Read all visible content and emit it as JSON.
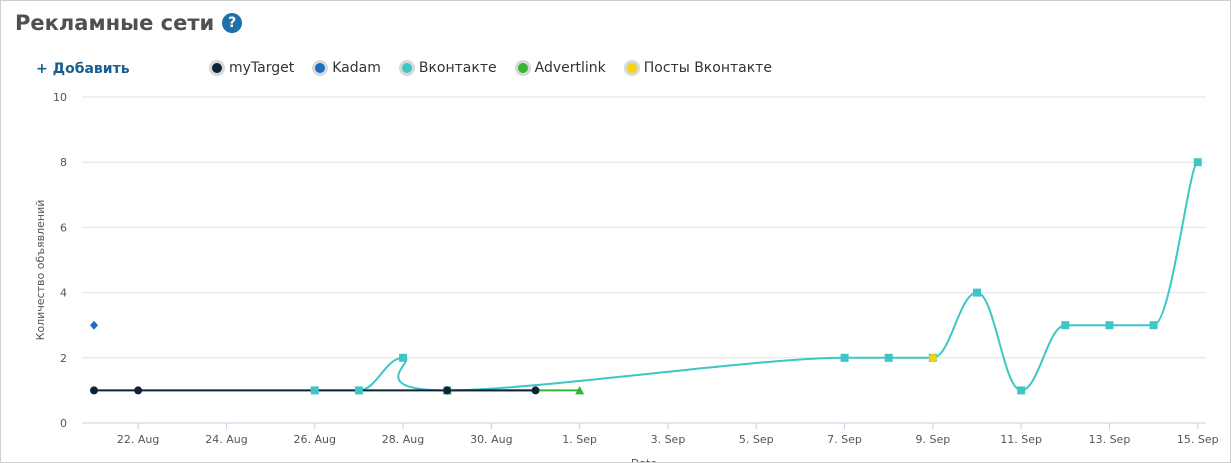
{
  "header": {
    "title": "Рекламные сети",
    "help_glyph": "?",
    "add_label": "+ Добавить"
  },
  "legend": [
    {
      "name": "myTarget",
      "color": "#0d233a"
    },
    {
      "name": "Kadam",
      "color": "#1b6fc2"
    },
    {
      "name": "Вконтакте",
      "color": "#3ec6c6"
    },
    {
      "name": "Advertlink",
      "color": "#35b535"
    },
    {
      "name": "Посты Вконтакте",
      "color": "#f5d40f"
    }
  ],
  "chart_data": {
    "type": "line",
    "ylabel": "Количество объявлений",
    "xlabel": "Date",
    "ylim": [
      0,
      10
    ],
    "yticks": [
      0,
      2,
      4,
      6,
      8,
      10
    ],
    "xlim": [
      "2016-08-21",
      "2016-09-15"
    ],
    "xticks": [
      {
        "date": "2016-08-22",
        "label": "22. Aug"
      },
      {
        "date": "2016-08-24",
        "label": "24. Aug"
      },
      {
        "date": "2016-08-26",
        "label": "26. Aug"
      },
      {
        "date": "2016-08-28",
        "label": "28. Aug"
      },
      {
        "date": "2016-08-30",
        "label": "30. Aug"
      },
      {
        "date": "2016-09-01",
        "label": "1. Sep"
      },
      {
        "date": "2016-09-03",
        "label": "3. Sep"
      },
      {
        "date": "2016-09-05",
        "label": "5. Sep"
      },
      {
        "date": "2016-09-07",
        "label": "7. Sep"
      },
      {
        "date": "2016-09-09",
        "label": "9. Sep"
      },
      {
        "date": "2016-09-11",
        "label": "11. Sep"
      },
      {
        "date": "2016-09-13",
        "label": "13. Sep"
      },
      {
        "date": "2016-09-15",
        "label": "15. Sep"
      }
    ],
    "grid": true,
    "legend_position": "top",
    "series": [
      {
        "name": "Kadam",
        "color": "#1b6fc2",
        "marker": "diamond",
        "points": [
          {
            "x": "2016-08-21",
            "y": 3
          }
        ]
      },
      {
        "name": "Вконтакте",
        "color": "#3ec6c6",
        "marker": "square",
        "points": [
          {
            "x": "2016-08-26",
            "y": 1
          },
          {
            "x": "2016-08-27",
            "y": 1
          },
          {
            "x": "2016-08-28",
            "y": 2
          },
          {
            "x": "2016-08-29",
            "y": 1
          },
          {
            "x": "2016-09-07",
            "y": 2
          },
          {
            "x": "2016-09-08",
            "y": 2
          },
          {
            "x": "2016-09-09",
            "y": 2
          },
          {
            "x": "2016-09-10",
            "y": 4
          },
          {
            "x": "2016-09-11",
            "y": 1
          },
          {
            "x": "2016-09-12",
            "y": 3
          },
          {
            "x": "2016-09-13",
            "y": 3
          },
          {
            "x": "2016-09-14",
            "y": 3
          },
          {
            "x": "2016-09-15",
            "y": 8
          }
        ]
      },
      {
        "name": "Advertlink",
        "color": "#35b535",
        "marker": "triangle",
        "points": [
          {
            "x": "2016-08-29",
            "y": 1
          },
          {
            "x": "2016-09-01",
            "y": 1
          }
        ]
      },
      {
        "name": "Посты Вконтакте",
        "color": "#f5d40f",
        "marker": "circle",
        "points": [
          {
            "x": "2016-09-09",
            "y": 2
          }
        ]
      },
      {
        "name": "myTarget",
        "color": "#0d233a",
        "marker": "circle",
        "points": [
          {
            "x": "2016-08-21",
            "y": 1
          },
          {
            "x": "2016-08-22",
            "y": 1
          },
          {
            "x": "2016-08-29",
            "y": 1
          },
          {
            "x": "2016-08-31",
            "y": 1
          }
        ]
      }
    ]
  }
}
